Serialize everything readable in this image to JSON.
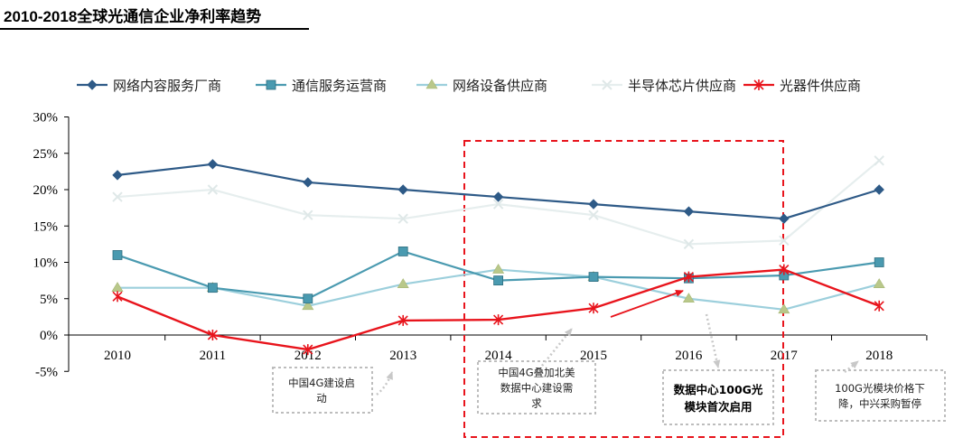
{
  "chart_data": {
    "type": "line",
    "title": "2010-2018全球光通信企业净利率趋势",
    "categories": [
      "2010",
      "2011",
      "2012",
      "2013",
      "2014",
      "2015",
      "2016",
      "2017",
      "2018"
    ],
    "ylim": [
      -5,
      30
    ],
    "yticks": [
      "-5%",
      "0%",
      "5%",
      "10%",
      "15%",
      "20%",
      "25%",
      "30%"
    ],
    "ytick_values": [
      -5,
      0,
      5,
      10,
      15,
      20,
      25,
      30
    ],
    "grid": false,
    "legend_position": "top",
    "series": [
      {
        "name": "网络内容服务厂商",
        "color": "#2e5a87",
        "marker": "diamond",
        "values": [
          22,
          23.5,
          21,
          20,
          19,
          18,
          17,
          16,
          20
        ]
      },
      {
        "name": "通信服务运营商",
        "color": "#4a9ab0",
        "marker": "square",
        "values": [
          11,
          6.5,
          5,
          11.5,
          7.5,
          8,
          7.8,
          8.2,
          10
        ]
      },
      {
        "name": "网络设备供应商",
        "color": "#9ccfdc",
        "marker": "triangle",
        "values": [
          6.5,
          6.5,
          4,
          7,
          9,
          8,
          5,
          3.5,
          7
        ]
      },
      {
        "name": "半导体芯片供应商",
        "color": "#e6eeee",
        "marker": "x",
        "values": [
          19,
          20,
          16.5,
          16,
          18,
          16.5,
          12.5,
          13,
          24
        ]
      },
      {
        "name": "光器件供应商",
        "color": "#e8141c",
        "marker": "star",
        "values": [
          5.3,
          0,
          -2,
          2,
          2.1,
          3.7,
          8,
          9,
          4
        ]
      }
    ],
    "annotations": [
      {
        "id": "note-2012",
        "lines": [
          "中国4G建设启",
          "动"
        ],
        "bold": false
      },
      {
        "id": "note-2014",
        "lines": [
          "中国4G叠加北美",
          "数据中心建设需",
          "求"
        ],
        "bold": false
      },
      {
        "id": "note-2016",
        "lines": [
          "数据中心100G光",
          "模块首次启用"
        ],
        "bold": true
      },
      {
        "id": "note-2018",
        "lines": [
          "100G光模块价格下",
          "降，中兴采购暂停"
        ],
        "bold": false
      }
    ]
  }
}
